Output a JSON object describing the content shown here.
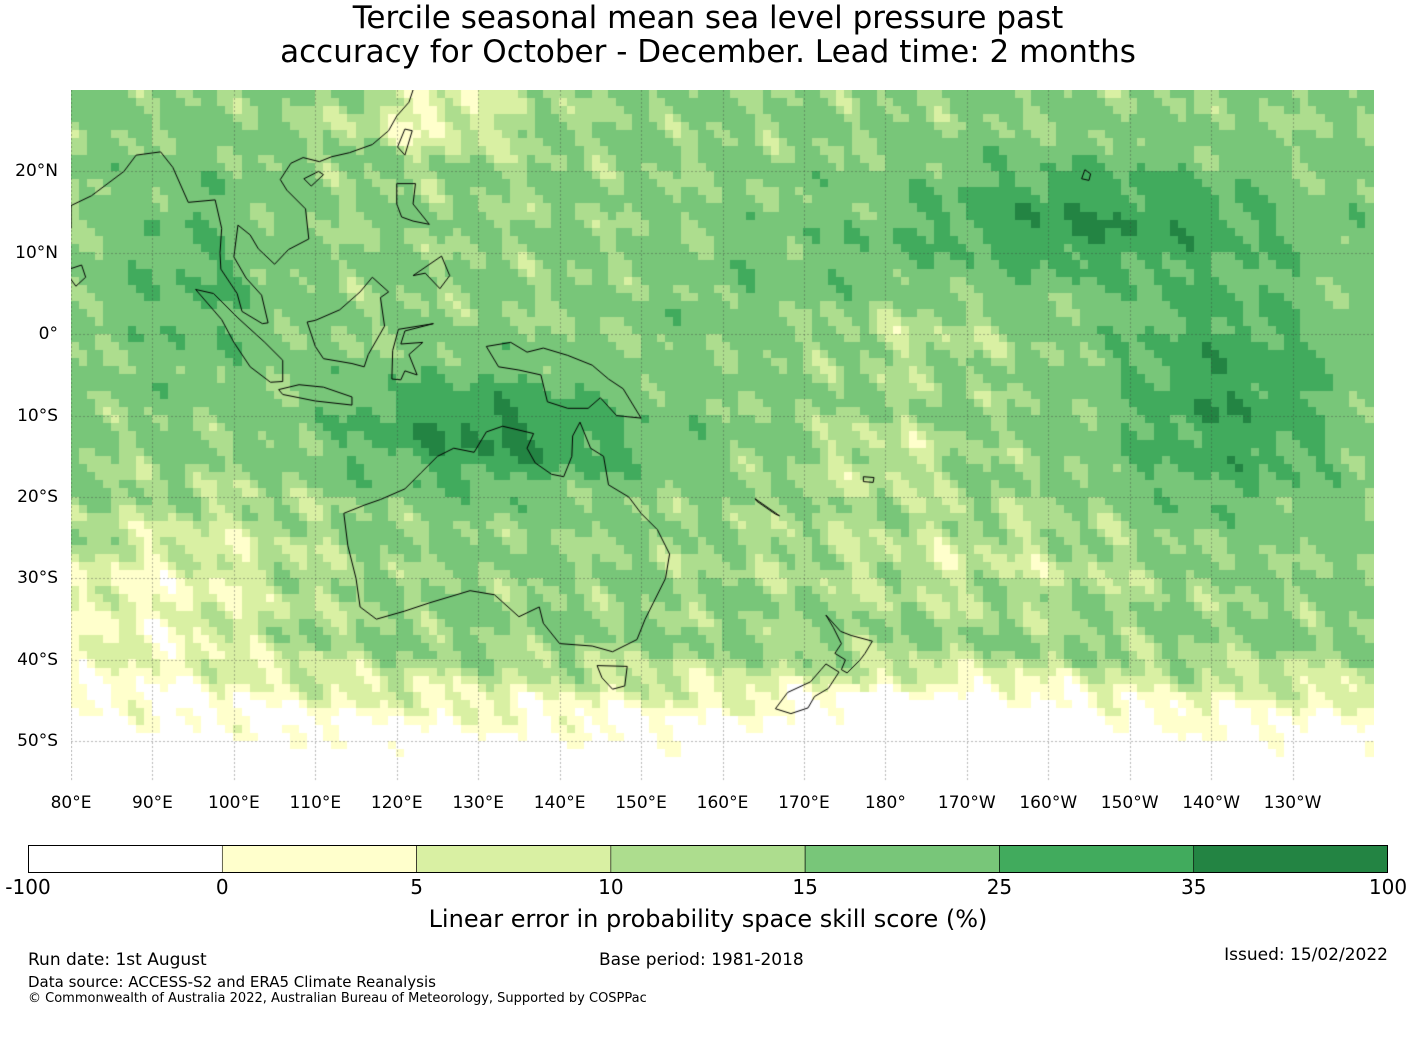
{
  "title_line1": "Tercile seasonal mean sea level pressure past",
  "title_line2": "accuracy for October - December. Lead time: 2 months",
  "map": {
    "lon_range": [
      80,
      240
    ],
    "lat_range": [
      -55,
      30
    ],
    "lon_ticks": [
      {
        "value": 80,
        "label": "80°E"
      },
      {
        "value": 90,
        "label": "90°E"
      },
      {
        "value": 100,
        "label": "100°E"
      },
      {
        "value": 110,
        "label": "110°E"
      },
      {
        "value": 120,
        "label": "120°E"
      },
      {
        "value": 130,
        "label": "130°E"
      },
      {
        "value": 140,
        "label": "140°E"
      },
      {
        "value": 150,
        "label": "150°E"
      },
      {
        "value": 160,
        "label": "160°E"
      },
      {
        "value": 170,
        "label": "170°E"
      },
      {
        "value": 180,
        "label": "180°"
      },
      {
        "value": 190,
        "label": "170°W"
      },
      {
        "value": 200,
        "label": "160°W"
      },
      {
        "value": 210,
        "label": "150°W"
      },
      {
        "value": 220,
        "label": "140°W"
      },
      {
        "value": 230,
        "label": "130°W"
      }
    ],
    "lat_ticks": [
      {
        "value": 20,
        "label": "20°N"
      },
      {
        "value": 10,
        "label": "10°N"
      },
      {
        "value": 0,
        "label": "0°"
      },
      {
        "value": -10,
        "label": "10°S"
      },
      {
        "value": -20,
        "label": "20°S"
      },
      {
        "value": -30,
        "label": "30°S"
      },
      {
        "value": -40,
        "label": "40°S"
      },
      {
        "value": -50,
        "label": "50°S"
      }
    ],
    "gridlines": true
  },
  "colorbar": {
    "bounds": [
      -100,
      0,
      5,
      10,
      15,
      25,
      35,
      100
    ],
    "labels": [
      "-100",
      "0",
      "5",
      "10",
      "15",
      "25",
      "35",
      "100"
    ],
    "colors": [
      "#ffffff",
      "#ffffcc",
      "#d9f0a3",
      "#addd8e",
      "#78c679",
      "#41ab5d",
      "#238443"
    ],
    "label": "Linear error in probability space skill score (%)"
  },
  "footer": {
    "run_date": "Run date: 1st August",
    "base_period": "Base period: 1981-2018",
    "issued": "Issued: 15/02/2022",
    "data_source": "Data source: ACCESS-S2 and ERA5 Climate Reanalysis",
    "copyright": "© Commonwealth of Australia 2022, Australian Bureau of Meteorology, Supported by COSPPac"
  }
}
